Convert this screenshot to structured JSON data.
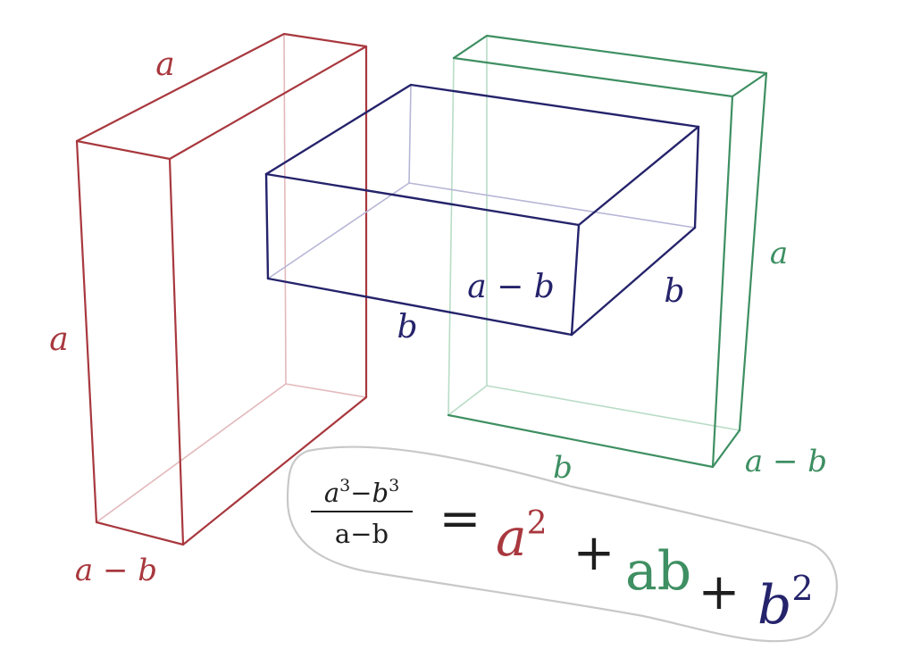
{
  "colors": {
    "red": "#a8383e",
    "red_faint": "#e3b9bc",
    "blue": "#25236b",
    "blue_faint": "#b7b6d6",
    "green": "#3e8f62",
    "green_faint": "#b9dcc6",
    "outline": "#c8c8c8",
    "text": "#1e1e1e"
  },
  "labels": {
    "red_top": "a",
    "red_left": "a",
    "red_bottom": "a − b",
    "blue_front": "a − b",
    "blue_bottom": "b",
    "blue_right": "b",
    "green_right": "a",
    "green_bottom": "b",
    "green_depth": "a − b"
  },
  "equation": {
    "num_a": "a",
    "num_a_exp": "3",
    "num_minus": "−",
    "num_b": "b",
    "num_b_exp": "3",
    "den": "a−b",
    "equals": "=",
    "term1_base": "a",
    "term1_exp": "2",
    "plus1": "+",
    "term2": "ab",
    "plus2": "+",
    "term3_base": "b",
    "term3_exp": "2"
  }
}
